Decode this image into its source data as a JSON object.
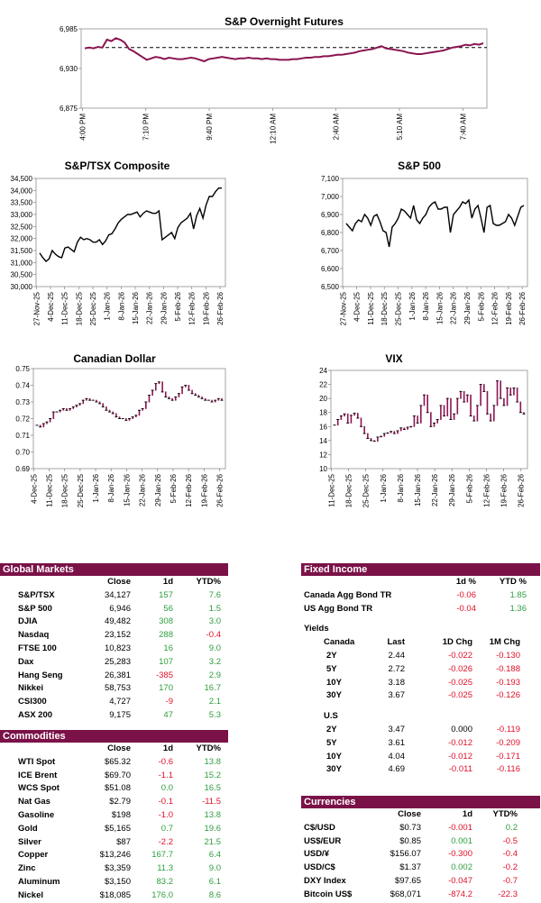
{
  "colors": {
    "line": "#8a1551",
    "header": "#7a1248",
    "positive": "#2e9e3e",
    "negative": "#e0102a"
  },
  "chart_data": [
    {
      "id": "futures",
      "type": "line",
      "title": "S&P Overnight Futures",
      "x_ticks": [
        "4:00 PM",
        "7:10 PM",
        "9:40 PM",
        "12:10 AM",
        "2:40 AM",
        "5:10 AM",
        "7:40 AM"
      ],
      "y_ticks": [
        "6,985",
        "6,930",
        "6,875"
      ],
      "ylim": [
        6875,
        6985
      ],
      "reference_line": 6959,
      "values": [
        6958,
        6959,
        6958,
        6960,
        6959,
        6970,
        6968,
        6972,
        6970,
        6966,
        6957,
        6954,
        6950,
        6946,
        6942,
        6944,
        6946,
        6945,
        6943,
        6945,
        6944,
        6943,
        6943,
        6944,
        6945,
        6944,
        6942,
        6940,
        6943,
        6944,
        6945,
        6946,
        6945,
        6944,
        6943,
        6944,
        6944,
        6945,
        6944,
        6944,
        6943,
        6944,
        6943,
        6943,
        6942,
        6942,
        6942,
        6943,
        6943,
        6944,
        6945,
        6945,
        6946,
        6946,
        6947,
        6947,
        6948,
        6949,
        6949,
        6950,
        6951,
        6952,
        6954,
        6955,
        6956,
        6957,
        6959,
        6961,
        6958,
        6957,
        6956,
        6955,
        6954,
        6952,
        6951,
        6950,
        6950,
        6951,
        6952,
        6953,
        6954,
        6955,
        6957,
        6959,
        6960,
        6961,
        6963,
        6962,
        6964,
        6963,
        6965
      ]
    },
    {
      "id": "tsx",
      "type": "line",
      "title": "S&P/TSX Composite",
      "x_ticks": [
        "27-Nov-25",
        "4-Dec-25",
        "11-Dec-25",
        "18-Dec-25",
        "25-Dec-25",
        "1-Jan-26",
        "8-Jan-26",
        "15-Jan-26",
        "22-Jan-26",
        "29-Jan-26",
        "5-Feb-26",
        "12-Feb-26",
        "19-Feb-26",
        "26-Feb-26"
      ],
      "y_ticks": [
        "34,500",
        "34,000",
        "33,500",
        "33,000",
        "32,500",
        "32,000",
        "31,500",
        "31,000",
        "30,500",
        "30,000"
      ],
      "ylim": [
        30000,
        34500
      ],
      "values": [
        31400,
        31200,
        31050,
        31150,
        31500,
        31350,
        31250,
        31200,
        31600,
        31650,
        31550,
        31450,
        31850,
        32050,
        31950,
        32000,
        31950,
        31850,
        31850,
        31950,
        31750,
        31900,
        32150,
        32200,
        32400,
        32650,
        32800,
        32900,
        33000,
        33000,
        33050,
        33100,
        32900,
        33050,
        33150,
        33100,
        33050,
        33050,
        33150,
        31950,
        32050,
        32150,
        32250,
        32000,
        32450,
        32650,
        32750,
        32850,
        33050,
        32400,
        32950,
        33250,
        32850,
        33400,
        33750,
        33750,
        33950,
        34100,
        34100
      ]
    },
    {
      "id": "spx",
      "type": "line",
      "title": "S&P 500",
      "x_ticks": [
        "27-Nov-25",
        "4-Dec-25",
        "11-Dec-25",
        "18-Dec-25",
        "25-Dec-25",
        "1-Jan-26",
        "8-Jan-26",
        "15-Jan-26",
        "22-Jan-26",
        "29-Jan-26",
        "5-Feb-26",
        "12-Feb-26",
        "19-Feb-26",
        "26-Feb-26"
      ],
      "y_ticks": [
        "7,100",
        "7,000",
        "6,900",
        "6,800",
        "6,700",
        "6,600",
        "6,500"
      ],
      "ylim": [
        6500,
        7100
      ],
      "values": [
        6850,
        6830,
        6810,
        6850,
        6870,
        6860,
        6900,
        6880,
        6840,
        6890,
        6900,
        6860,
        6810,
        6800,
        6720,
        6830,
        6850,
        6880,
        6930,
        6920,
        6900,
        6880,
        6950,
        6870,
        6850,
        6880,
        6900,
        6940,
        6960,
        6970,
        6930,
        6930,
        6940,
        6940,
        6800,
        6900,
        6920,
        6940,
        6970,
        6960,
        6980,
        6880,
        6930,
        6950,
        6880,
        6800,
        6940,
        6950,
        6850,
        6840,
        6840,
        6850,
        6860,
        6900,
        6880,
        6840,
        6890,
        6940,
        6950
      ]
    },
    {
      "id": "cad",
      "type": "line",
      "title": "Canadian Dollar",
      "x_ticks": [
        "4-Dec-25",
        "11-Dec-25",
        "18-Dec-25",
        "25-Dec-25",
        "1-Jan-26",
        "8-Jan-26",
        "15-Jan-26",
        "22-Jan-26",
        "29-Jan-26",
        "5-Feb-26",
        "12-Feb-26",
        "19-Feb-26",
        "26-Feb-26"
      ],
      "y_ticks": [
        "0.75",
        "0.74",
        "0.73",
        "0.72",
        "0.71",
        "0.70",
        "0.69"
      ],
      "ylim": [
        0.69,
        0.75
      ],
      "values": [
        0.716,
        0.715,
        0.717,
        0.718,
        0.72,
        0.724,
        0.724,
        0.725,
        0.726,
        0.725,
        0.726,
        0.727,
        0.728,
        0.729,
        0.731,
        0.732,
        0.731,
        0.731,
        0.73,
        0.729,
        0.727,
        0.725,
        0.724,
        0.723,
        0.721,
        0.72,
        0.72,
        0.719,
        0.72,
        0.721,
        0.722,
        0.725,
        0.726,
        0.73,
        0.734,
        0.737,
        0.741,
        0.742,
        0.736,
        0.733,
        0.732,
        0.731,
        0.733,
        0.735,
        0.739,
        0.74,
        0.737,
        0.735,
        0.734,
        0.733,
        0.732,
        0.731,
        0.731,
        0.73,
        0.731,
        0.732,
        0.731
      ]
    },
    {
      "id": "vix",
      "type": "line",
      "title": "VIX",
      "x_ticks": [
        "11-Dec-25",
        "18-Dec-25",
        "25-Dec-25",
        "1-Jan-26",
        "8-Jan-26",
        "15-Jan-26",
        "22-Jan-26",
        "29-Jan-26",
        "5-Feb-26",
        "12-Feb-26",
        "19-Feb-26",
        "26-Feb-26"
      ],
      "y_ticks": [
        "24",
        "22",
        "20",
        "18",
        "16",
        "14",
        "12",
        "10"
      ],
      "ylim": [
        10,
        24
      ],
      "values": [
        16.2,
        17.0,
        17.5,
        17.8,
        16.5,
        17.6,
        17.9,
        17.2,
        16.0,
        15.0,
        14.3,
        14.0,
        13.9,
        14.5,
        14.6,
        15.0,
        15.1,
        15.3,
        15.0,
        15.4,
        15.8,
        15.6,
        15.9,
        16.0,
        17.5,
        16.5,
        19.0,
        20.5,
        18.0,
        16.0,
        16.5,
        17.0,
        19.0,
        17.5,
        20.0,
        17.0,
        17.8,
        20.0,
        21.0,
        19.5,
        20.5,
        17.5,
        16.8,
        19.0,
        22.0,
        21.0,
        17.8,
        16.8,
        19.0,
        22.5,
        20.0,
        19.0,
        21.5,
        20.5,
        21.5,
        19.5,
        18.0,
        17.8
      ]
    }
  ],
  "global_markets": {
    "title": "Global Markets",
    "columns": [
      "Close",
      "1d",
      "YTD%"
    ],
    "rows": [
      {
        "name": "S&P/TSX",
        "close": "34,127",
        "d1": "157",
        "ytd": "7.6",
        "d1_sign": "pos",
        "ytd_sign": "pos"
      },
      {
        "name": "S&P 500",
        "close": "6,946",
        "d1": "56",
        "ytd": "1.5",
        "d1_sign": "pos",
        "ytd_sign": "pos"
      },
      {
        "name": "DJIA",
        "close": "49,482",
        "d1": "308",
        "ytd": "3.0",
        "d1_sign": "pos",
        "ytd_sign": "pos"
      },
      {
        "name": "Nasdaq",
        "close": "23,152",
        "d1": "288",
        "ytd": "-0.4",
        "d1_sign": "pos",
        "ytd_sign": "neg"
      },
      {
        "name": "FTSE 100",
        "close": "10,823",
        "d1": "16",
        "ytd": "9.0",
        "d1_sign": "pos",
        "ytd_sign": "pos"
      },
      {
        "name": "Dax",
        "close": "25,283",
        "d1": "107",
        "ytd": "3.2",
        "d1_sign": "pos",
        "ytd_sign": "pos"
      },
      {
        "name": "Hang Seng",
        "close": "26,381",
        "d1": "-385",
        "ytd": "2.9",
        "d1_sign": "neg",
        "ytd_sign": "pos"
      },
      {
        "name": "Nikkei",
        "close": "58,753",
        "d1": "170",
        "ytd": "16.7",
        "d1_sign": "pos",
        "ytd_sign": "pos"
      },
      {
        "name": "CSI300",
        "close": "4,727",
        "d1": "-9",
        "ytd": "2.1",
        "d1_sign": "neg",
        "ytd_sign": "pos"
      },
      {
        "name": "ASX 200",
        "close": "9,175",
        "d1": "47",
        "ytd": "5.3",
        "d1_sign": "pos",
        "ytd_sign": "pos"
      }
    ]
  },
  "commodities": {
    "title": "Commodities",
    "columns": [
      "Close",
      "1d",
      "YTD%"
    ],
    "rows": [
      {
        "name": "WTI Spot",
        "close": "$65.32",
        "d1": "-0.6",
        "ytd": "13.8",
        "d1_sign": "neg",
        "ytd_sign": "pos"
      },
      {
        "name": "ICE Brent",
        "close": "$69.70",
        "d1": "-1.1",
        "ytd": "15.2",
        "d1_sign": "neg",
        "ytd_sign": "pos"
      },
      {
        "name": "WCS Spot",
        "close": "$51.08",
        "d1": "0.0",
        "ytd": "16.5",
        "d1_sign": "pos",
        "ytd_sign": "pos"
      },
      {
        "name": "Nat Gas",
        "close": "$2.79",
        "d1": "-0.1",
        "ytd": "-11.5",
        "d1_sign": "neg",
        "ytd_sign": "neg"
      },
      {
        "name": "Gasoline",
        "close": "$198",
        "d1": "-1.0",
        "ytd": "13.8",
        "d1_sign": "neg",
        "ytd_sign": "pos"
      },
      {
        "name": "Gold",
        "close": "$5,165",
        "d1": "0.7",
        "ytd": "19.6",
        "d1_sign": "pos",
        "ytd_sign": "pos"
      },
      {
        "name": "Silver",
        "close": "$87",
        "d1": "-2.2",
        "ytd": "21.5",
        "d1_sign": "neg",
        "ytd_sign": "pos"
      },
      {
        "name": "Copper",
        "close": "$13,246",
        "d1": "167.7",
        "ytd": "6.4",
        "d1_sign": "pos",
        "ytd_sign": "pos"
      },
      {
        "name": "Zinc",
        "close": "$3,359",
        "d1": "11.3",
        "ytd": "9.0",
        "d1_sign": "pos",
        "ytd_sign": "pos"
      },
      {
        "name": "Aluminum",
        "close": "$3,150",
        "d1": "83.2",
        "ytd": "6.1",
        "d1_sign": "pos",
        "ytd_sign": "pos"
      },
      {
        "name": "Nickel",
        "close": "$18,085",
        "d1": "176.0",
        "ytd": "8.6",
        "d1_sign": "pos",
        "ytd_sign": "pos"
      }
    ]
  },
  "fixed_income": {
    "title": "Fixed Income",
    "columns": [
      "1d %",
      "YTD %"
    ],
    "rows": [
      {
        "name": "Canada Agg Bond TR",
        "d1": "-0.06",
        "ytd": "1.85",
        "d1_sign": "neg",
        "ytd_sign": "pos"
      },
      {
        "name": "US Agg Bond TR",
        "d1": "-0.04",
        "ytd": "1.36",
        "d1_sign": "neg",
        "ytd_sign": "pos"
      }
    ],
    "yields_label": "Yields",
    "yield_columns": [
      "Last",
      "1D Chg",
      "1M Chg"
    ],
    "canada": {
      "label": "Canada",
      "rows": [
        {
          "name": "2Y",
          "last": "2.44",
          "d1": "-0.022",
          "m1": "-0.130"
        },
        {
          "name": "5Y",
          "last": "2.72",
          "d1": "-0.026",
          "m1": "-0.188"
        },
        {
          "name": "10Y",
          "last": "3.18",
          "d1": "-0.025",
          "m1": "-0.193"
        },
        {
          "name": "30Y",
          "last": "3.67",
          "d1": "-0.025",
          "m1": "-0.126"
        }
      ]
    },
    "us": {
      "label": "U.S",
      "rows": [
        {
          "name": "2Y",
          "last": "3.47",
          "d1": "0.000",
          "m1": "-0.119",
          "d1_sign": "blk"
        },
        {
          "name": "5Y",
          "last": "3.61",
          "d1": "-0.012",
          "m1": "-0.209"
        },
        {
          "name": "10Y",
          "last": "4.04",
          "d1": "-0.012",
          "m1": "-0.171"
        },
        {
          "name": "30Y",
          "last": "4.69",
          "d1": "-0.011",
          "m1": "-0.116"
        }
      ]
    }
  },
  "currencies": {
    "title": "Currencies",
    "columns": [
      "Close",
      "1d",
      "YTD%"
    ],
    "rows": [
      {
        "name": "C$/USD",
        "close": "$0.73",
        "d1": "-0.001",
        "ytd": "0.2",
        "d1_sign": "neg",
        "ytd_sign": "pos"
      },
      {
        "name": "US$/EUR",
        "close": "$0.85",
        "d1": "0.001",
        "ytd": "-0.5",
        "d1_sign": "pos",
        "ytd_sign": "neg"
      },
      {
        "name": "USD/¥",
        "close": "$156.07",
        "d1": "-0.300",
        "ytd": "-0.4",
        "d1_sign": "neg",
        "ytd_sign": "neg"
      },
      {
        "name": "USD/C$",
        "close": "$1.37",
        "d1": "0.002",
        "ytd": "-0.2",
        "d1_sign": "pos",
        "ytd_sign": "neg"
      },
      {
        "name": "DXY Index",
        "close": "$97.65",
        "d1": "-0.047",
        "ytd": "-0.7",
        "d1_sign": "neg",
        "ytd_sign": "neg"
      },
      {
        "name": "Bitcoin US$",
        "close": "$68,071",
        "d1": "-874.2",
        "ytd": "-22.3",
        "d1_sign": "neg",
        "ytd_sign": "neg"
      }
    ]
  }
}
